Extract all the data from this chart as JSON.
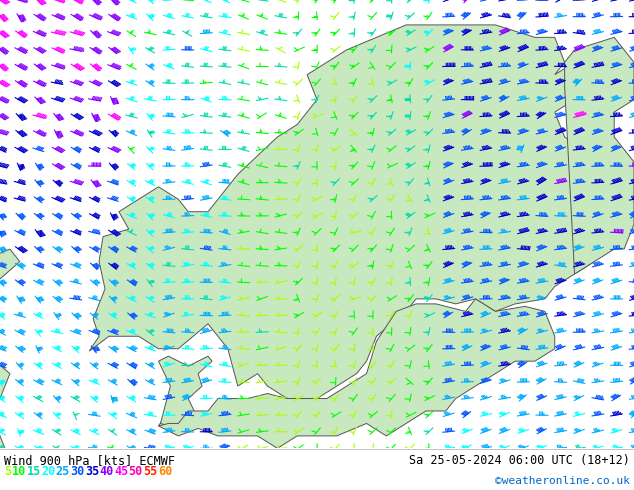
{
  "title_left": "Wind 900 hPa [kts] ECMWF",
  "title_right": "Sa 25-05-2024 06:00 UTC (18+12)",
  "credit": "©weatheronline.co.uk",
  "legend_values": [
    5,
    10,
    15,
    20,
    25,
    30,
    35,
    40,
    45,
    50,
    55,
    60
  ],
  "legend_colors": [
    "#aaff00",
    "#00ff00",
    "#00ddaa",
    "#00ffff",
    "#00aaff",
    "#0055ff",
    "#0000cc",
    "#8800ff",
    "#ff00ff",
    "#ff00aa",
    "#ff2200",
    "#ff8800"
  ],
  "background_color": "#ffffff",
  "sea_color": "#d8d8d8",
  "land_color": "#c8e8c0",
  "border_color": "#555555",
  "figsize": [
    6.34,
    4.9
  ],
  "dpi": 100,
  "bottom_bar_height": 0.085,
  "map_extent": [
    0.0,
    32.0,
    54.0,
    72.0
  ],
  "wind_nx": 35,
  "wind_ny": 28
}
